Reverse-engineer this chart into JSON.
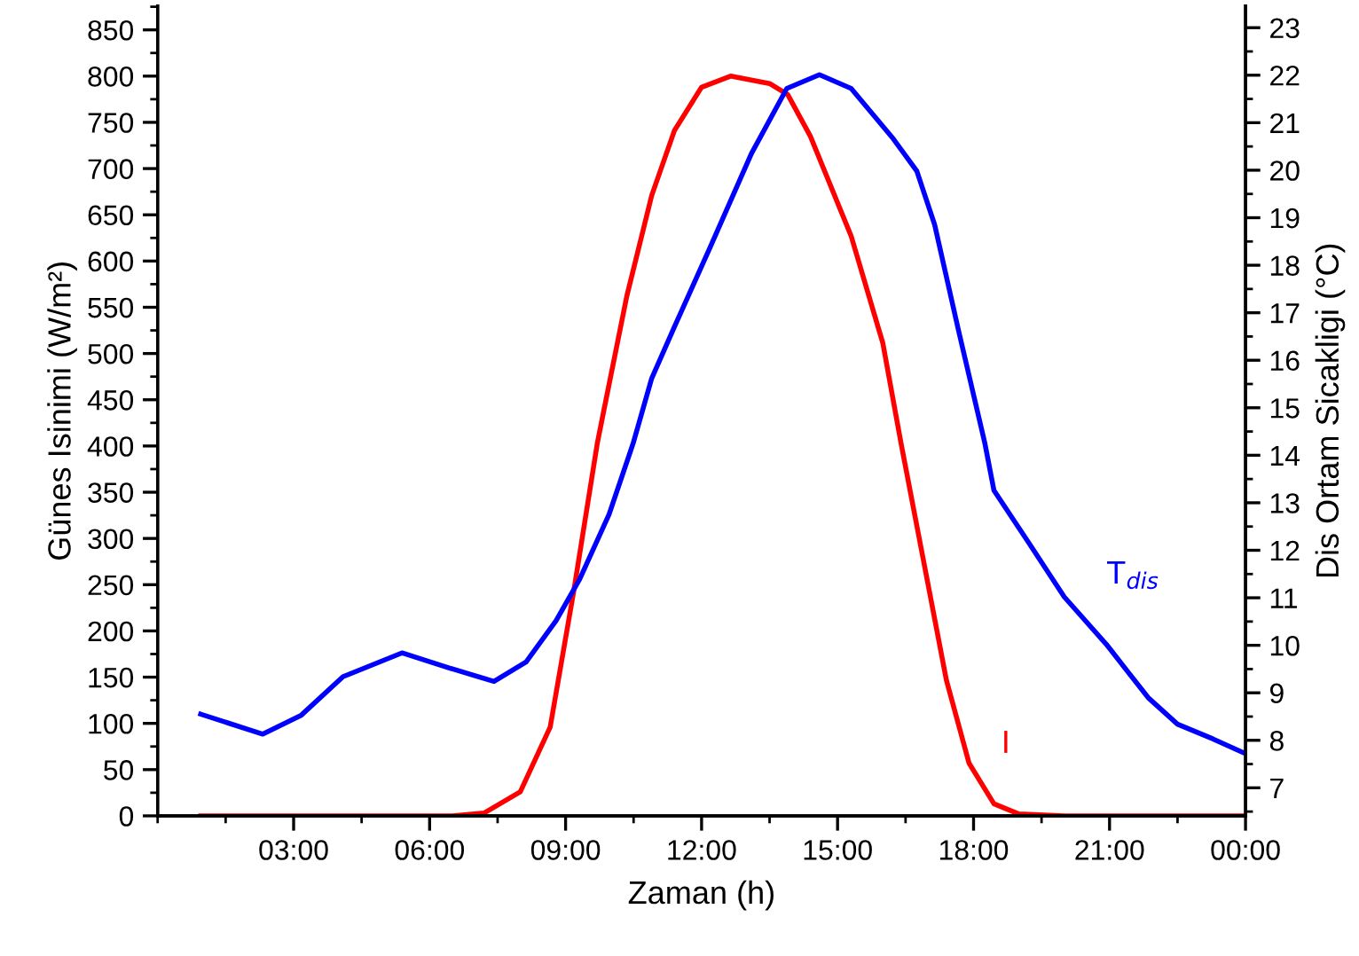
{
  "chart_data": {
    "type": "line",
    "xlabel": "Zaman (h)",
    "ylabel": "Günes Isinimi (W/m²)",
    "y2label": "Dis Ortam Sicakligi (°C)",
    "xlim": [
      0,
      24
    ],
    "xticks": [
      {
        "value": 3,
        "label": "03:00"
      },
      {
        "value": 6,
        "label": "06:00"
      },
      {
        "value": 9,
        "label": "09:00"
      },
      {
        "value": 12,
        "label": "12:00"
      },
      {
        "value": 15,
        "label": "15:00"
      },
      {
        "value": 18,
        "label": "18:00"
      },
      {
        "value": 21,
        "label": "21:00"
      },
      {
        "value": 24,
        "label": "00:00"
      }
    ],
    "ylim": [
      0,
      876
    ],
    "yticks": [
      0,
      50,
      100,
      150,
      200,
      250,
      300,
      350,
      400,
      450,
      500,
      550,
      600,
      650,
      700,
      750,
      800,
      850
    ],
    "y2lim": [
      6.41,
      23.46
    ],
    "y2ticks": [
      7,
      8,
      9,
      10,
      11,
      12,
      13,
      14,
      15,
      16,
      17,
      18,
      19,
      20,
      21,
      22,
      23
    ],
    "grid": false,
    "legend": false,
    "marker": "none",
    "line_style": "solid",
    "series": [
      {
        "name": "I",
        "color": "#ff0000",
        "x": [
          0.95,
          3,
          5,
          6.5,
          7.2,
          8.0,
          8.66,
          9.18,
          9.7,
          9.83,
          10.35,
          10.9,
          11.4,
          12.0,
          12.64,
          13.5,
          13.9,
          14.4,
          15.3,
          16.0,
          16.4,
          16.9,
          17.4,
          17.9,
          18.45,
          19.0,
          20.0,
          22.0,
          24.0
        ],
        "values": [
          0,
          0,
          0,
          0,
          3,
          26,
          96,
          243,
          403,
          435,
          562,
          671,
          741,
          788,
          800,
          792,
          780,
          735,
          627,
          511,
          403,
          275,
          147,
          57,
          13,
          2,
          0,
          0,
          0
        ]
      },
      {
        "name": "T$_{dis}$",
        "color": "#0000ff",
        "axis": "y2",
        "x": [
          0.95,
          2.32,
          3.17,
          4.09,
          5.39,
          6.44,
          7.42,
          8.13,
          8.79,
          9.31,
          9.96,
          10.49,
          10.9,
          11.4,
          12.18,
          13.1,
          13.88,
          14.6,
          15.3,
          16.23,
          16.75,
          17.14,
          17.67,
          18.25,
          18.45,
          19.23,
          20.0,
          20.93,
          21.85,
          22.5,
          23.28,
          24.0
        ],
        "values": [
          8.55,
          8.13,
          8.53,
          9.34,
          9.84,
          9.52,
          9.24,
          9.65,
          10.52,
          11.39,
          12.76,
          14.25,
          15.62,
          16.7,
          18.36,
          20.35,
          21.72,
          22.01,
          21.72,
          20.66,
          19.98,
          18.86,
          16.62,
          14.25,
          13.26,
          12.14,
          11.02,
          10.02,
          8.9,
          8.34,
          8.03,
          7.72
        ]
      }
    ]
  }
}
